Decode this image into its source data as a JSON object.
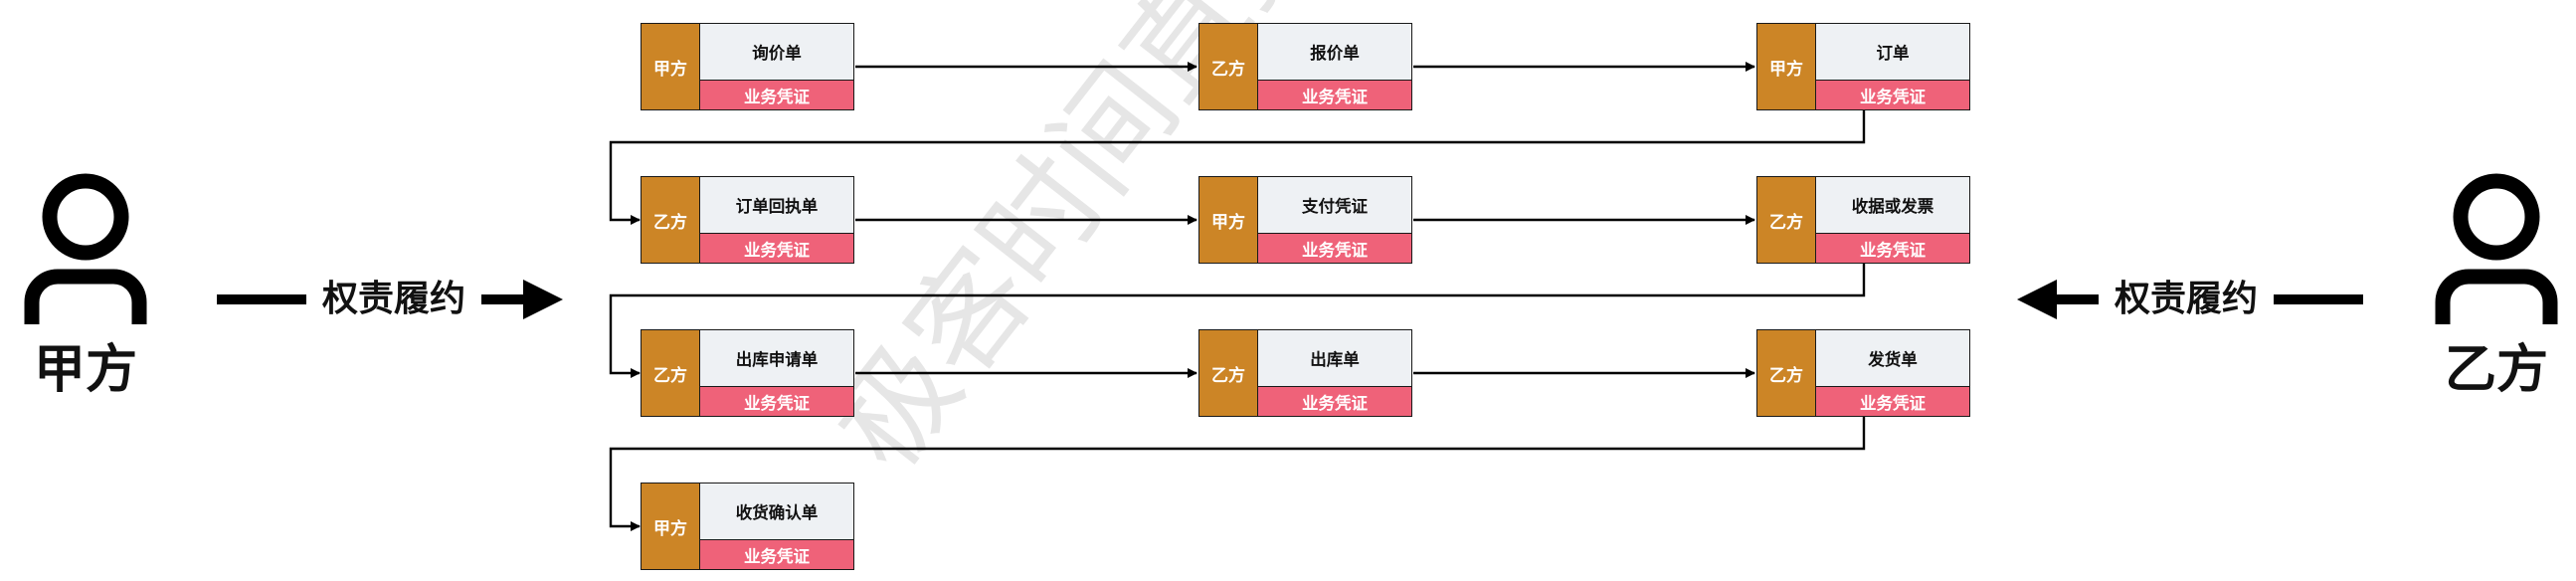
{
  "left_actor": {
    "name": "甲方",
    "role_label": "权责履约"
  },
  "right_actor": {
    "name": "乙方",
    "role_label": "权责履约"
  },
  "watermark": "极客时间直播",
  "nodes": [
    {
      "party": "甲方",
      "doc": "询价单",
      "cert": "业务凭证"
    },
    {
      "party": "乙方",
      "doc": "报价单",
      "cert": "业务凭证"
    },
    {
      "party": "甲方",
      "doc": "订单",
      "cert": "业务凭证"
    },
    {
      "party": "乙方",
      "doc": "订单回执单",
      "cert": "业务凭证"
    },
    {
      "party": "甲方",
      "doc": "支付凭证",
      "cert": "业务凭证"
    },
    {
      "party": "乙方",
      "doc": "收据或发票",
      "cert": "业务凭证"
    },
    {
      "party": "乙方",
      "doc": "出库申请单",
      "cert": "业务凭证"
    },
    {
      "party": "乙方",
      "doc": "出库单",
      "cert": "业务凭证"
    },
    {
      "party": "乙方",
      "doc": "发货单",
      "cert": "业务凭证"
    },
    {
      "party": "甲方",
      "doc": "收货确认单",
      "cert": "业务凭证"
    }
  ],
  "colors": {
    "party": "#cc8526",
    "doc": "#eef1f4",
    "cert": "#ef6279",
    "line": "#000000"
  },
  "icons": {
    "actor": "person-icon",
    "arrow": "arrow-right-icon"
  }
}
